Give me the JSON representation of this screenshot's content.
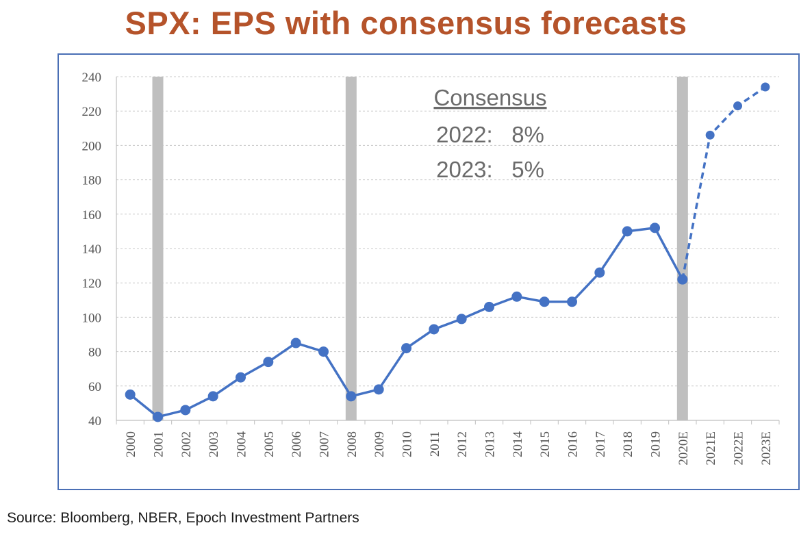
{
  "title": "SPX: EPS with consensus forecasts",
  "source": "Source: Bloomberg, NBER, Epoch Investment Partners",
  "chart_data": {
    "type": "line",
    "title": "SPX: EPS with consensus forecasts",
    "xlabel": "",
    "ylabel": "",
    "ylim": [
      40,
      240
    ],
    "yticks": [
      40,
      60,
      80,
      100,
      120,
      140,
      160,
      180,
      200,
      220,
      240
    ],
    "grid": true,
    "categories": [
      "2000",
      "2001",
      "2002",
      "2003",
      "2004",
      "2005",
      "2006",
      "2007",
      "2008",
      "2009",
      "2010",
      "2011",
      "2012",
      "2013",
      "2014",
      "2015",
      "2016",
      "2017",
      "2018",
      "2019",
      "2020E",
      "2021E",
      "2022E",
      "2023E"
    ],
    "series": [
      {
        "style": "solid",
        "color": "#4472c4",
        "x": [
          "2000",
          "2001",
          "2002",
          "2003",
          "2004",
          "2005",
          "2006",
          "2007",
          "2008",
          "2009",
          "2010",
          "2011",
          "2012",
          "2013",
          "2014",
          "2015",
          "2016",
          "2017",
          "2018",
          "2019",
          "2020E"
        ],
        "values": [
          55,
          42,
          46,
          54,
          65,
          74,
          85,
          80,
          54,
          58,
          82,
          93,
          99,
          106,
          112,
          109,
          109,
          126,
          150,
          152,
          122
        ]
      },
      {
        "style": "dashed",
        "color": "#4472c4",
        "x": [
          "2020E",
          "2021E",
          "2022E",
          "2023E"
        ],
        "values": [
          122,
          206,
          223,
          234
        ]
      }
    ],
    "recessions": [
      "2001",
      "2008",
      "2020E"
    ],
    "recession_color": "#bfbfbf",
    "annotation": {
      "heading": "Consensus",
      "lines": [
        "2022:   8%",
        "2023:   5%"
      ]
    }
  }
}
